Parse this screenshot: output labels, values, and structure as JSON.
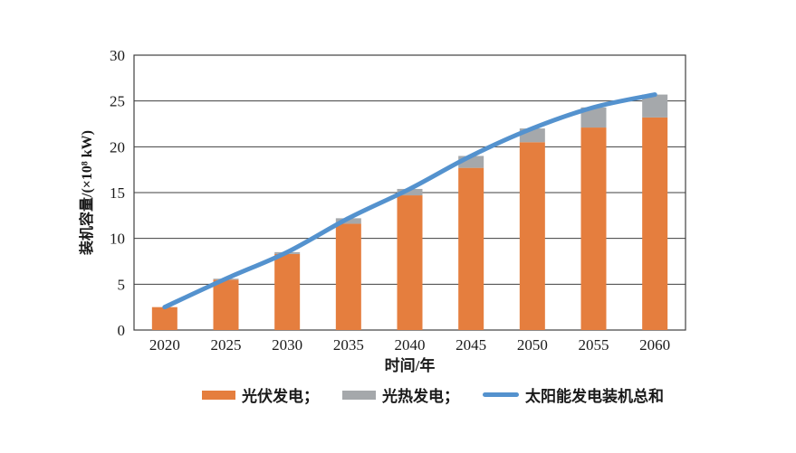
{
  "chart_data": {
    "type": "bar",
    "subtype": "stacked-bars-with-total-line",
    "title": "",
    "categories": [
      "2020",
      "2025",
      "2030",
      "2035",
      "2040",
      "2045",
      "2050",
      "2055",
      "2060"
    ],
    "series": [
      {
        "name": "光伏发电",
        "type": "bar",
        "color": "#E57E3E",
        "values": [
          2.5,
          5.5,
          8.3,
          11.6,
          14.7,
          17.7,
          20.5,
          22.1,
          23.2
        ]
      },
      {
        "name": "光热发电",
        "type": "bar",
        "color": "#A5A8AB",
        "values": [
          0.0,
          0.1,
          0.2,
          0.6,
          0.7,
          1.3,
          1.5,
          2.2,
          2.5
        ]
      },
      {
        "name": "太阳能发电装机总和",
        "type": "line",
        "color": "#5492CE",
        "values": [
          2.5,
          5.6,
          8.5,
          12.2,
          15.4,
          19.0,
          22.0,
          24.3,
          25.7
        ]
      }
    ],
    "xlabel": "时间/年",
    "ylabel": "装机容量/(×10⁸ kW)",
    "ylim": [
      0,
      30
    ],
    "yticks": [
      0,
      5,
      10,
      15,
      20,
      25,
      30
    ],
    "grid": "horizontal",
    "legend_position": "bottom"
  },
  "legend": {
    "items": [
      {
        "label": "光伏发电；",
        "swatch": "bar",
        "color": "#E57E3E"
      },
      {
        "label": "光热发电；",
        "swatch": "bar",
        "color": "#A5A8AB"
      },
      {
        "label": "太阳能发电装机总和",
        "swatch": "line",
        "color": "#5492CE"
      }
    ]
  },
  "colors": {
    "grid": "#3F3F3F",
    "text": "#1A1A1A",
    "background": "#FFFFFF"
  }
}
